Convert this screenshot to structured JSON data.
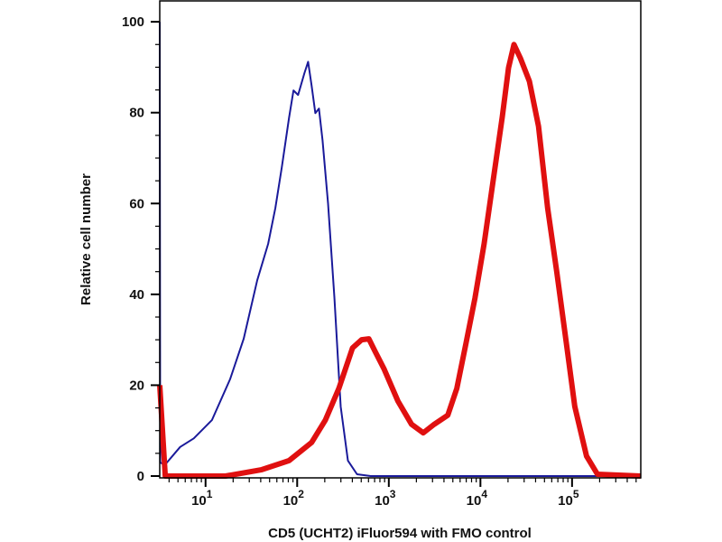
{
  "chart_data": {
    "type": "line",
    "title": "",
    "xlabel": "CD5 (UCHT2) iFluor594 with FMO control",
    "ylabel": "Relative cell number",
    "xscale": "log10",
    "xlim_log10": [
      0.5,
      5.75
    ],
    "ylim": [
      -0.4,
      104.6
    ],
    "x_ticks": [
      {
        "exp": 1,
        "base": "10",
        "sup": "1"
      },
      {
        "exp": 2,
        "base": "10",
        "sup": "2"
      },
      {
        "exp": 3,
        "base": "10",
        "sup": "3"
      },
      {
        "exp": 4,
        "base": "10",
        "sup": "4"
      },
      {
        "exp": 5,
        "base": "10",
        "sup": "5"
      }
    ],
    "y_ticks": [
      0,
      20,
      40,
      60,
      80,
      100
    ],
    "grid": false,
    "series": [
      {
        "name": "FMO control",
        "color": "#1a1a9a",
        "log10_x": [
          0.5,
          0.505,
          0.554,
          0.723,
          0.871,
          1.069,
          1.267,
          1.416,
          1.564,
          1.683,
          1.762,
          1.832,
          1.911,
          1.96,
          2.01,
          2.079,
          2.119,
          2.158,
          2.198,
          2.238,
          2.277,
          2.337,
          2.406,
          2.475,
          2.554,
          2.653,
          2.802,
          5.75
        ],
        "y": [
          100,
          3,
          2.4,
          6.4,
          8.3,
          12.3,
          21.3,
          30.2,
          43.1,
          51.1,
          59.0,
          67.9,
          78.9,
          84.9,
          83.9,
          88.7,
          91.2,
          85.9,
          79.9,
          80.9,
          73.9,
          60.0,
          39.4,
          15.3,
          3.4,
          0.4,
          0,
          0
        ]
      },
      {
        "name": "CD5 (UCHT2) iFluor594",
        "color": "#e01010",
        "log10_x": [
          0.5,
          0.56,
          1.218,
          1.614,
          1.911,
          2.158,
          2.307,
          2.455,
          2.604,
          2.703,
          2.782,
          2.851,
          2.95,
          3.099,
          3.248,
          3.376,
          3.495,
          3.644,
          3.743,
          3.842,
          3.941,
          4.04,
          4.139,
          4.238,
          4.307,
          4.366,
          4.436,
          4.535,
          4.634,
          4.733,
          4.832,
          4.931,
          5.03,
          5.158,
          5.277,
          5.75
        ],
        "y": [
          20,
          0,
          0,
          1.4,
          3.4,
          7.4,
          12.3,
          19.3,
          28.2,
          30.0,
          30.2,
          27.4,
          23.5,
          16.5,
          11.4,
          9.5,
          11.4,
          13.4,
          19.3,
          29.2,
          39.2,
          51.1,
          65.0,
          79.0,
          89.9,
          95.0,
          92.0,
          86.9,
          77.0,
          59.0,
          45.1,
          30.2,
          15.3,
          4.4,
          0.4,
          0
        ]
      }
    ]
  }
}
